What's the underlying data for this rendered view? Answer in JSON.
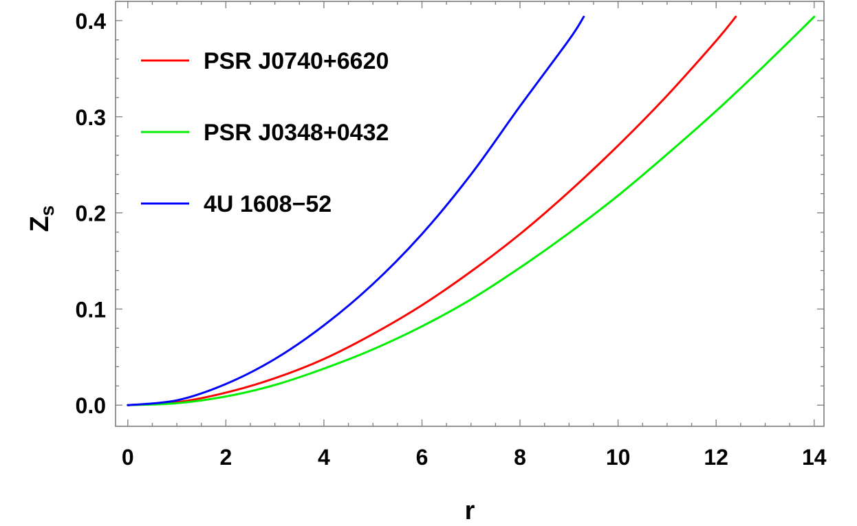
{
  "chart_data": {
    "type": "line",
    "xlabel": "r",
    "ylabel": "Z",
    "ylabel_subscript": "s",
    "xlim": [
      -0.25,
      14.2
    ],
    "ylim": [
      -0.022,
      0.42
    ],
    "xticks": [
      0,
      2,
      4,
      6,
      8,
      10,
      12,
      14
    ],
    "xtick_labels": [
      "0",
      "2",
      "4",
      "6",
      "8",
      "10",
      "12",
      "14"
    ],
    "yticks": [
      0.0,
      0.1,
      0.2,
      0.3,
      0.4
    ],
    "ytick_labels": [
      "0.0",
      "0.1",
      "0.2",
      "0.3",
      "0.4"
    ],
    "grid": false,
    "legend_position": "top-left",
    "series": [
      {
        "name": "PSR J0740+6620",
        "color": "#ff0000",
        "x": [
          0,
          1,
          2,
          3,
          4,
          5,
          6,
          7,
          8,
          9,
          10,
          11,
          12,
          12.4
        ],
        "y": [
          0.0,
          0.003,
          0.013,
          0.028,
          0.048,
          0.074,
          0.104,
          0.139,
          0.178,
          0.222,
          0.27,
          0.322,
          0.379,
          0.404
        ]
      },
      {
        "name": "PSR J0348+0432",
        "color": "#00ee00",
        "x": [
          0,
          1,
          2,
          3,
          4,
          5,
          6,
          7,
          8,
          9,
          10,
          11,
          12,
          13,
          14
        ],
        "y": [
          0.0,
          0.002,
          0.009,
          0.021,
          0.038,
          0.058,
          0.082,
          0.11,
          0.143,
          0.179,
          0.218,
          0.261,
          0.306,
          0.354,
          0.404
        ]
      },
      {
        "name": "4U 1608−52",
        "color": "#0000ff",
        "x": [
          0,
          1,
          2,
          3,
          4,
          5,
          6,
          7,
          8,
          9,
          9.3
        ],
        "y": [
          0.0,
          0.005,
          0.022,
          0.048,
          0.083,
          0.126,
          0.178,
          0.24,
          0.311,
          0.38,
          0.404
        ]
      }
    ]
  }
}
